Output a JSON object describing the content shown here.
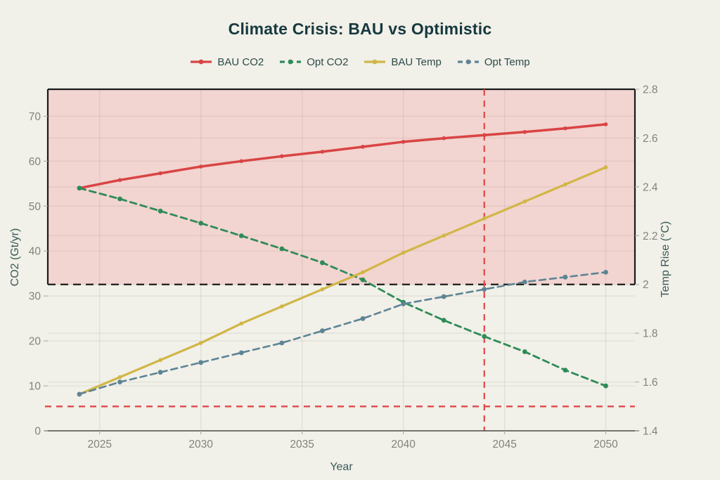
{
  "header": {
    "title": "Climate Crisis: BAU vs Optimistic"
  },
  "theme": {
    "background": "#f1f0e9",
    "title_color": "#16393e",
    "legend_text_color": "#2d4a4a",
    "axis_title_color": "#3a5a58",
    "tick_label_color": "#83837b",
    "grid_color": "rgba(80,80,60,0.10)",
    "axis_line_color": "#4a4a45",
    "tick_mark_color": "#b0b0a8",
    "danger_zone_fill": "#f2d4d0",
    "danger_zone_border": "#1a1a1a",
    "threshold_red": "#e04848",
    "threshold_black": "#1c1c1c"
  },
  "chart_data": {
    "type": "line",
    "title": "Climate Crisis: BAU vs Optimistic",
    "xlabel": "Year",
    "ylabel_left": "CO2 (Gt/yr)",
    "ylabel_right": "Temp Rise (°C)",
    "legend_position": "top",
    "grid": true,
    "x": [
      2024,
      2026,
      2028,
      2030,
      2032,
      2034,
      2036,
      2038,
      2040,
      2042,
      2044,
      2046,
      2048,
      2050
    ],
    "xticks": [
      2025,
      2030,
      2035,
      2040,
      2045,
      2050
    ],
    "yticks_left": [
      0,
      10,
      20,
      30,
      40,
      50,
      60,
      70
    ],
    "yticks_right": [
      1.4,
      1.6,
      1.8,
      2,
      2.2,
      2.4,
      2.6,
      2.8
    ],
    "xlim": [
      2022.44,
      2051.44
    ],
    "ylim_left": [
      0,
      76
    ],
    "ylim_right": [
      1.4,
      2.8
    ],
    "series": [
      {
        "name": "BAU CO2",
        "axis": "left",
        "color": "#d94444",
        "dash": "solid",
        "line_width": 3.5,
        "values": [
          54.0,
          55.8,
          57.3,
          58.8,
          60.0,
          61.1,
          62.1,
          63.2,
          64.3,
          65.1,
          65.8,
          66.5,
          67.3,
          68.2
        ]
      },
      {
        "name": "Opt CO2",
        "axis": "left",
        "color": "#2e8b57",
        "dash": "dashed",
        "line_width": 2.8,
        "values": [
          54.0,
          51.6,
          48.9,
          46.2,
          43.4,
          40.5,
          37.4,
          33.6,
          28.6,
          24.6,
          21.0,
          17.6,
          13.5,
          10.0
        ]
      },
      {
        "name": "BAU Temp",
        "axis": "right",
        "color": "#d1b646",
        "dash": "solid",
        "line_width": 3.2,
        "values": [
          1.55,
          1.62,
          1.69,
          1.76,
          1.84,
          1.91,
          1.98,
          2.05,
          2.13,
          2.2,
          2.27,
          2.34,
          2.41,
          2.48
        ]
      },
      {
        "name": "Opt Temp",
        "axis": "right",
        "color": "#5d8494",
        "dash": "dashed",
        "line_width": 2.6,
        "values": [
          1.55,
          1.6,
          1.64,
          1.68,
          1.72,
          1.76,
          1.81,
          1.86,
          1.92,
          1.95,
          1.98,
          2.01,
          2.03,
          2.05
        ]
      }
    ],
    "annotations": {
      "danger_zone": {
        "axis": "right",
        "from": 2.0,
        "to": 2.8
      },
      "two_degree_line": {
        "axis": "right",
        "value": 2.0
      },
      "one_point_five_line": {
        "axis": "right",
        "value": 1.5
      },
      "deadline_vline": {
        "x": 2044
      }
    }
  }
}
